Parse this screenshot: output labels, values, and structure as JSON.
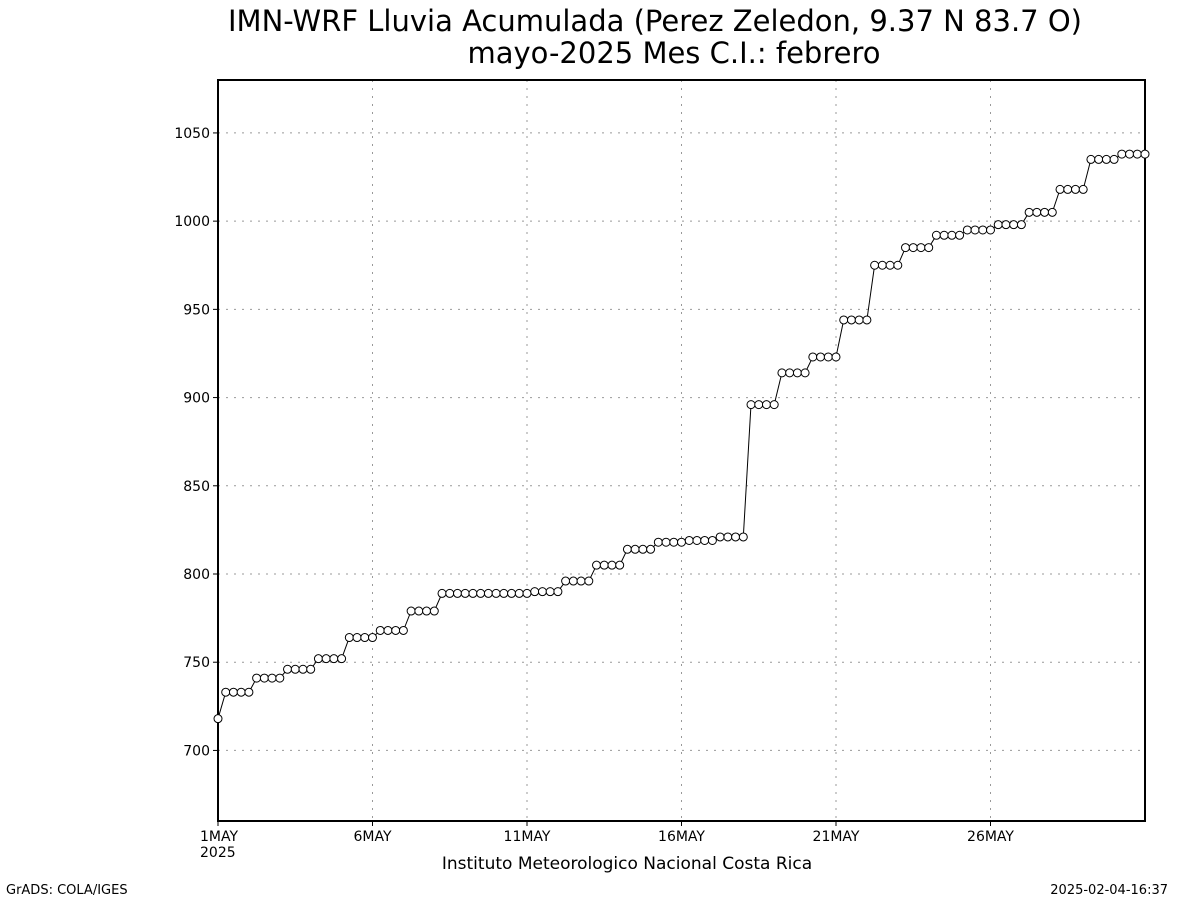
{
  "chart_data": {
    "type": "line",
    "title": "IMN-WRF  Lluvia Acumulada  (Perez Zeledon, 9.37  N 83.7  O)",
    "subtitle": "mayo-2025 Mes C.I.: febrero",
    "xlabel": "Instituto Meteorologico Nacional Costa Rica",
    "ylabel": "",
    "ylim": [
      660,
      1080
    ],
    "xlim": [
      1,
      31
    ],
    "grid": true,
    "y_ticks": [
      700,
      750,
      800,
      850,
      900,
      950,
      1000,
      1050
    ],
    "x_ticks": [
      {
        "day": 1,
        "label": "1MAY"
      },
      {
        "day": 6,
        "label": "6MAY"
      },
      {
        "day": 11,
        "label": "11MAY"
      },
      {
        "day": 16,
        "label": "16MAY"
      },
      {
        "day": 21,
        "label": "21MAY"
      },
      {
        "day": 26,
        "label": "26MAY"
      }
    ],
    "x_sublabel": "2025",
    "x_unit": "day of May 2025 (fractional, 6-hourly steps)",
    "series": [
      {
        "x": [
          1.0,
          1.25,
          1.5,
          1.75,
          2.0,
          2.25,
          2.5,
          2.75,
          3.0,
          3.25,
          3.5,
          3.75,
          4.0,
          4.25,
          4.5,
          4.75,
          5.0,
          5.25,
          5.5,
          5.75,
          6.0,
          6.25,
          6.5,
          6.75,
          7.0,
          7.25,
          7.5,
          7.75,
          8.0,
          8.25,
          8.5,
          8.75,
          9.0,
          9.25,
          9.5,
          9.75,
          10.0,
          10.25,
          10.5,
          10.75,
          11.0,
          11.25,
          11.5,
          11.75,
          12.0,
          12.25,
          12.5,
          12.75,
          13.0,
          13.25,
          13.5,
          13.75,
          14.0,
          14.25,
          14.5,
          14.75,
          15.0,
          15.25,
          15.5,
          15.75,
          16.0,
          16.25,
          16.5,
          16.75,
          17.0,
          17.25,
          17.5,
          17.75,
          18.0,
          18.25,
          18.5,
          18.75,
          19.0,
          19.25,
          19.5,
          19.75,
          20.0,
          20.25,
          20.5,
          20.75,
          21.0,
          21.25,
          21.5,
          21.75,
          22.0,
          22.25,
          22.5,
          22.75,
          23.0,
          23.25,
          23.5,
          23.75,
          24.0,
          24.25,
          24.5,
          24.75,
          25.0,
          25.25,
          25.5,
          25.75,
          26.0,
          26.25,
          26.5,
          26.75,
          27.0,
          27.25,
          27.5,
          27.75,
          28.0,
          28.25,
          28.5,
          28.75,
          29.0,
          29.25,
          29.5,
          29.75,
          30.0,
          30.25,
          30.5,
          30.75,
          31.0
        ],
        "values": [
          718,
          733,
          733,
          733,
          733,
          741,
          741,
          741,
          741,
          746,
          746,
          746,
          746,
          752,
          752,
          752,
          752,
          764,
          764,
          764,
          764,
          768,
          768,
          768,
          768,
          779,
          779,
          779,
          779,
          789,
          789,
          789,
          789,
          789,
          789,
          789,
          789,
          789,
          789,
          789,
          789,
          790,
          790,
          790,
          790,
          796,
          796,
          796,
          796,
          805,
          805,
          805,
          805,
          814,
          814,
          814,
          814,
          818,
          818,
          818,
          818,
          819,
          819,
          819,
          819,
          821,
          821,
          821,
          821,
          896,
          896,
          896,
          896,
          914,
          914,
          914,
          914,
          923,
          923,
          923,
          923,
          944,
          944,
          944,
          944,
          975,
          975,
          975,
          975,
          985,
          985,
          985,
          985,
          992,
          992,
          992,
          992,
          995,
          995,
          995,
          995,
          998,
          998,
          998,
          998,
          1005,
          1005,
          1005,
          1005,
          1018,
          1018,
          1018,
          1018,
          1035,
          1035,
          1035,
          1035,
          1038,
          1038,
          1038,
          1038
        ]
      }
    ]
  },
  "footer": {
    "left": "GrADS: COLA/IGES",
    "right": "2025-02-04-16:37"
  }
}
